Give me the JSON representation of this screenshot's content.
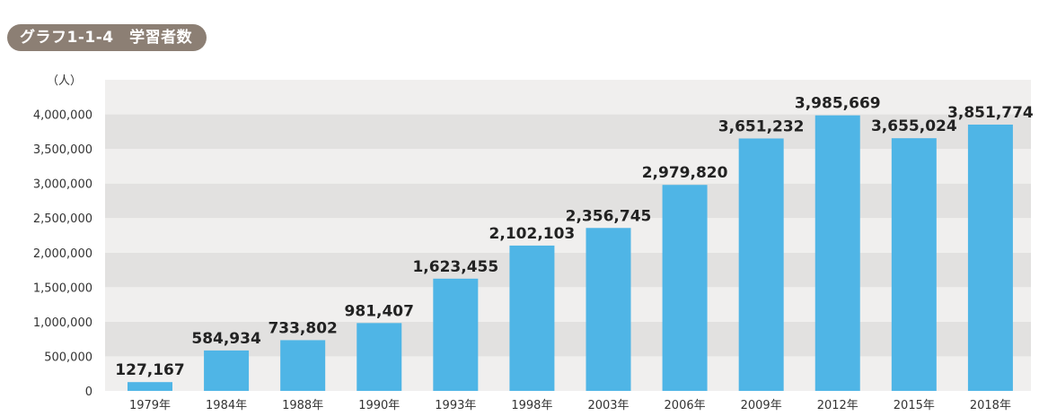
{
  "figure_label": "グラフ1-1-4　学習者数",
  "chart_data": {
    "type": "bar",
    "title": "グラフ1-1-4　学習者数",
    "ylabel": "（人）",
    "xlabel": "",
    "categories": [
      "1979年",
      "1984年",
      "1988年",
      "1990年",
      "1993年",
      "1998年",
      "2003年",
      "2006年",
      "2009年",
      "2012年",
      "2015年",
      "2018年"
    ],
    "values": [
      127167,
      584934,
      733802,
      981407,
      1623455,
      2102103,
      2356745,
      2979820,
      3651232,
      3985669,
      3655024,
      3851774
    ],
    "value_labels": [
      "127,167",
      "584,934",
      "733,802",
      "981,407",
      "1,623,455",
      "2,102,103",
      "2,356,745",
      "2,979,820",
      "3,651,232",
      "3,985,669",
      "3,655,024",
      "3,851,774"
    ],
    "y_ticks": [
      0,
      500000,
      1000000,
      1500000,
      2000000,
      2500000,
      3000000,
      3500000,
      4000000
    ],
    "y_tick_labels": [
      "0",
      "500,000",
      "1,000,000",
      "1,500,000",
      "2,000,000",
      "2,500,000",
      "3,000,000",
      "3,500,000",
      "4,000,000"
    ],
    "ylim": [
      0,
      4500000
    ],
    "grid": "alternating horizontal bands",
    "legend": "none",
    "colors": {
      "bar": "#4fb5e6",
      "band_light": "#f0efee",
      "band_dark": "#e2e1e0",
      "title_pill": "#8c7f74"
    }
  }
}
